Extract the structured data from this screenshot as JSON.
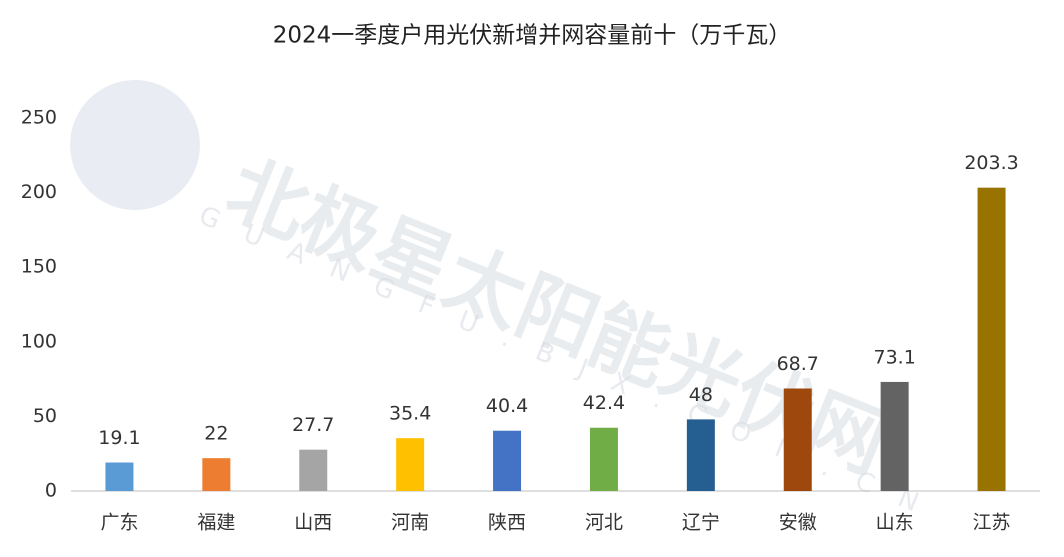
{
  "chart_data": {
    "type": "bar",
    "title": "2024一季度户用光伏新增并网容量前十（万千瓦）",
    "watermark": "北极星太阳能光伏网",
    "watermark_sub": "GUANGFU.BJX.COM.CN",
    "categories": [
      "广东",
      "福建",
      "山西",
      "河南",
      "陕西",
      "河北",
      "辽宁",
      "安徽",
      "山东",
      "江苏"
    ],
    "values": [
      19.1,
      22,
      27.7,
      35.4,
      40.4,
      42.4,
      48,
      68.7,
      73.1,
      203.3
    ],
    "colors": [
      "#5b9bd5",
      "#ed7d31",
      "#a5a5a5",
      "#ffc000",
      "#4472c4",
      "#70ad47",
      "#255e91",
      "#9e480e",
      "#636363",
      "#997300"
    ],
    "ylim": [
      0,
      250
    ],
    "yticks": [
      0,
      50,
      100,
      150,
      200,
      250
    ],
    "grid": false
  }
}
